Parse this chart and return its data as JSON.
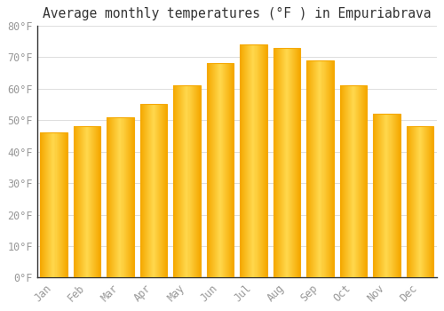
{
  "title": "Average monthly temperatures (°F ) in Empuriabrava",
  "months": [
    "Jan",
    "Feb",
    "Mar",
    "Apr",
    "May",
    "Jun",
    "Jul",
    "Aug",
    "Sep",
    "Oct",
    "Nov",
    "Dec"
  ],
  "values": [
    46,
    48,
    51,
    55,
    61,
    68,
    74,
    73,
    69,
    61,
    52,
    48
  ],
  "bar_color_center": "#FFD84D",
  "bar_color_edge": "#F5A800",
  "ylim": [
    0,
    80
  ],
  "yticks": [
    0,
    10,
    20,
    30,
    40,
    50,
    60,
    70,
    80
  ],
  "ytick_labels": [
    "0°F",
    "10°F",
    "20°F",
    "30°F",
    "40°F",
    "50°F",
    "60°F",
    "70°F",
    "80°F"
  ],
  "background_color": "#FFFFFF",
  "grid_color": "#DDDDDD",
  "title_fontsize": 10.5,
  "tick_fontsize": 8.5,
  "tick_color": "#999999",
  "bar_width": 0.82,
  "spine_color": "#333333"
}
